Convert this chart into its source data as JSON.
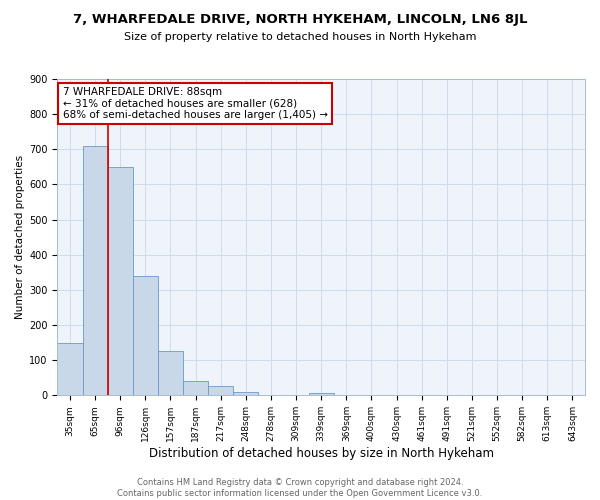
{
  "title": "7, WHARFEDALE DRIVE, NORTH HYKEHAM, LINCOLN, LN6 8JL",
  "subtitle": "Size of property relative to detached houses in North Hykeham",
  "xlabel": "Distribution of detached houses by size in North Hykeham",
  "ylabel": "Number of detached properties",
  "categories": [
    "35sqm",
    "65sqm",
    "96sqm",
    "126sqm",
    "157sqm",
    "187sqm",
    "217sqm",
    "248sqm",
    "278sqm",
    "309sqm",
    "339sqm",
    "369sqm",
    "400sqm",
    "430sqm",
    "461sqm",
    "491sqm",
    "521sqm",
    "552sqm",
    "582sqm",
    "613sqm",
    "643sqm"
  ],
  "values": [
    150,
    710,
    650,
    340,
    125,
    40,
    27,
    10,
    0,
    0,
    8,
    0,
    0,
    0,
    0,
    0,
    0,
    0,
    0,
    0,
    0
  ],
  "bar_color": "#c8d8e8",
  "bar_edge_color": "#6699cc",
  "grid_color": "#ccddee",
  "background_color": "#eef4fa",
  "property_line_x": 1.5,
  "annotation_text": "7 WHARFEDALE DRIVE: 88sqm\n← 31% of detached houses are smaller (628)\n68% of semi-detached houses are larger (1,405) →",
  "annotation_box_color": "#ffffff",
  "annotation_box_edge": "#cc0000",
  "footer": "Contains HM Land Registry data © Crown copyright and database right 2024.\nContains public sector information licensed under the Open Government Licence v3.0.",
  "ylim": [
    0,
    900
  ],
  "yticks": [
    0,
    100,
    200,
    300,
    400,
    500,
    600,
    700,
    800,
    900
  ],
  "title_fontsize": 9.5,
  "subtitle_fontsize": 8,
  "xlabel_fontsize": 8.5,
  "ylabel_fontsize": 7.5,
  "tick_fontsize": 6.5,
  "annotation_fontsize": 7.5,
  "footer_fontsize": 6
}
